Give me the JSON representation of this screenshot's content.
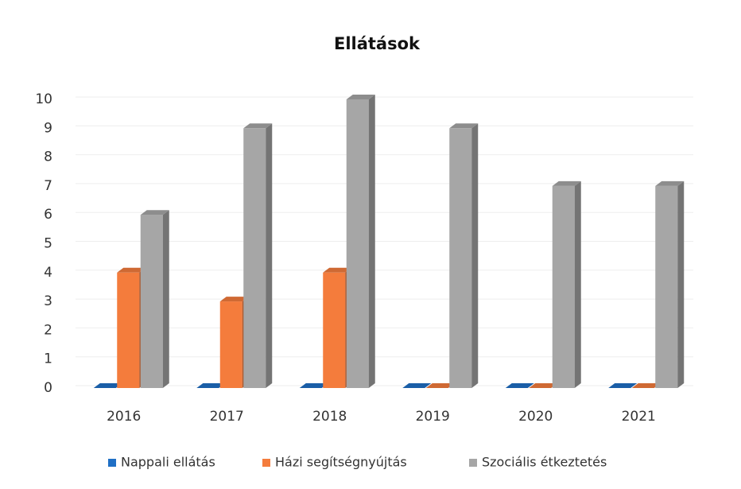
{
  "chart_data": {
    "type": "bar3d",
    "title": "Ellátások",
    "categories": [
      "2016",
      "2017",
      "2018",
      "2019",
      "2020",
      "2021"
    ],
    "series": [
      {
        "name": "Nappali ellátás",
        "color": "#1f6fc5",
        "values": [
          0,
          0,
          0,
          0,
          0,
          0
        ]
      },
      {
        "name": "Házi segítségnyújtás",
        "color": "#f47c3c",
        "values": [
          4,
          3,
          4,
          0,
          0,
          0
        ]
      },
      {
        "name": "Szociális étkeztetés",
        "color": "#a6a6a6",
        "values": [
          6,
          9,
          10,
          9,
          7,
          7
        ]
      }
    ],
    "ylim": [
      0,
      10
    ],
    "yticks": [
      0,
      1,
      2,
      3,
      4,
      5,
      6,
      7,
      8,
      9,
      10
    ],
    "grid": true,
    "legend": "bottom"
  }
}
